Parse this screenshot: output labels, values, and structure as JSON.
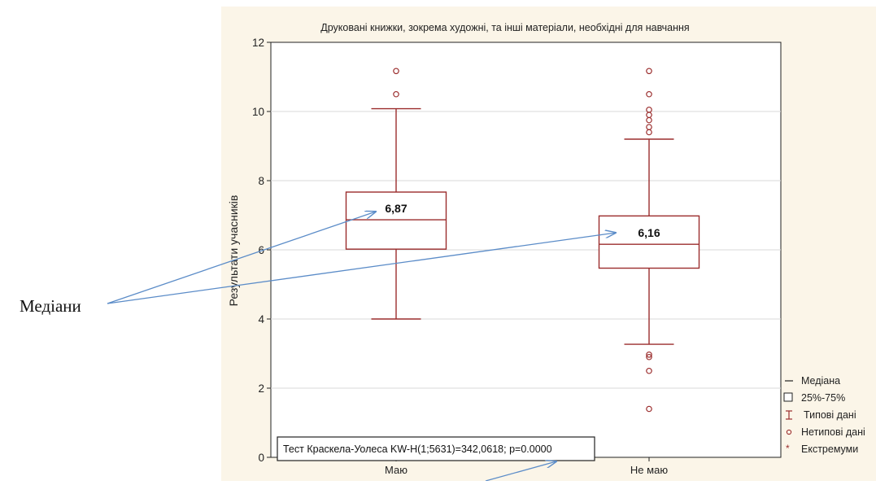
{
  "chart_data": {
    "type": "box",
    "title": "Друковані книжки, зокрема художні, та інші матеріали, необхідні для навчання",
    "xlabel": "",
    "ylabel": "Результати учасників",
    "ylim": [
      0,
      12
    ],
    "yticks": [
      "0",
      "2",
      "4",
      "6",
      "8",
      "10",
      "12"
    ],
    "grid": true,
    "categories": [
      "Маю",
      "Не маю"
    ],
    "boxes": [
      {
        "category": "Маю",
        "median": 6.87,
        "median_label": "6,87",
        "q1": 6.02,
        "q3": 7.67,
        "whisker_low": 4.0,
        "whisker_high": 10.08,
        "outliers": [
          10.5,
          11.17
        ],
        "extremes": []
      },
      {
        "category": "Не маю",
        "median": 6.16,
        "median_label": "6,16",
        "q1": 5.47,
        "q3": 6.98,
        "whisker_low": 3.27,
        "whisker_high": 9.2,
        "outliers": [
          9.4,
          9.55,
          9.75,
          9.9,
          10.05,
          10.5,
          11.17,
          2.9,
          2.97,
          2.5,
          1.4
        ],
        "extremes": []
      }
    ],
    "legend_position": "right",
    "legend": [
      "Медіана",
      "25%-75%",
      "Типові дані",
      "Нетипові дані",
      "Екстремуми"
    ],
    "test_label": "Тест Краскела-Уолеса KW-H(1;5631)=342,0618; p=0.0000"
  },
  "annotations": {
    "medians_label": "Медіани"
  },
  "colors": {
    "box_stroke": "#9b2d2d",
    "arrow": "#5b8cc8",
    "frame_bg": "#fbf5e8",
    "grid": "#d8d8d8"
  }
}
